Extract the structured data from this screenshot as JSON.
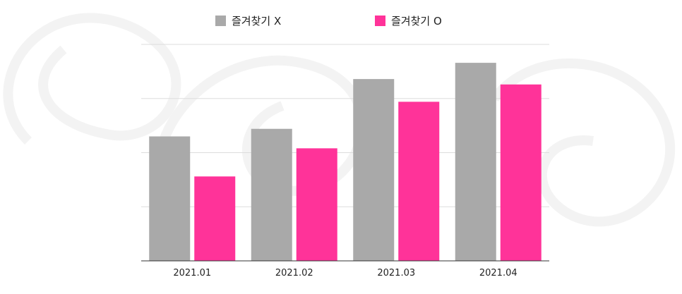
{
  "chart_data": {
    "type": "bar",
    "title": "",
    "xlabel": "",
    "ylabel": "",
    "categories": [
      "2021.01",
      "2021.02",
      "2021.03",
      "2021.04"
    ],
    "series": [
      {
        "name": "즐겨찾기 X",
        "color": "#a9a9a9",
        "values": [
          57.5,
          61.0,
          84.0,
          91.5
        ]
      },
      {
        "name": "즐겨찾기 O",
        "color": "#ff3399",
        "values": [
          39.0,
          52.0,
          73.5,
          81.5
        ]
      }
    ],
    "ylim": [
      0,
      100
    ],
    "y_gridlines": [
      25,
      50,
      75,
      100
    ],
    "y_tick_labels_shown": false,
    "grid": true,
    "legend_position": "top-center",
    "colors": {
      "gridline": "#dddddd",
      "baseline": "#333333",
      "background_decoration": "#f3f3f3"
    }
  }
}
